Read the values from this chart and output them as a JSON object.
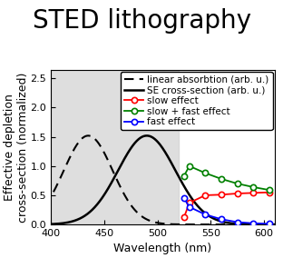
{
  "title": "STED lithography",
  "xlabel": "Wavelength (nm)",
  "ylabel": "Effective depletion\ncross-section (normalized)",
  "xlim": [
    400,
    610
  ],
  "ylim": [
    0,
    2.65
  ],
  "yticks": [
    0,
    0.5,
    1,
    1.5,
    2,
    2.5
  ],
  "xticks": [
    400,
    450,
    500,
    550,
    600
  ],
  "gray_region": [
    400,
    520
  ],
  "dashed_peak": 435,
  "dashed_sigma": 23,
  "dashed_amplitude": 1.52,
  "solid_peak": 490,
  "solid_sigma": 27,
  "solid_amplitude": 1.52,
  "red_x": [
    525,
    530,
    545,
    560,
    575,
    590,
    605
  ],
  "red_y": [
    0.12,
    0.37,
    0.5,
    0.51,
    0.53,
    0.54,
    0.55
  ],
  "green_x": [
    525,
    530,
    545,
    560,
    575,
    590,
    605
  ],
  "green_y": [
    0.83,
    1.0,
    0.88,
    0.78,
    0.7,
    0.64,
    0.59
  ],
  "blue_x": [
    525,
    530,
    545,
    560,
    575,
    590,
    605
  ],
  "blue_y": [
    0.45,
    0.3,
    0.17,
    0.09,
    0.04,
    0.02,
    0.01
  ],
  "title_fontsize": 20,
  "axis_fontsize": 9,
  "tick_fontsize": 8,
  "legend_fontsize": 7.5
}
